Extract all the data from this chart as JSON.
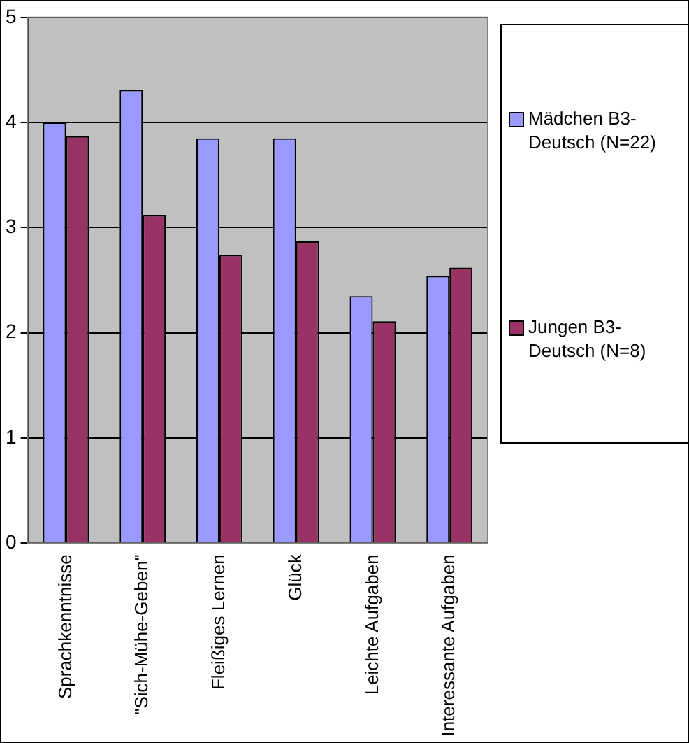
{
  "chart_data": {
    "type": "bar",
    "categories": [
      "Sprachkenntnisse",
      "\"Sich-Mühe-Geben\"",
      "Fleißiges Lernen",
      "Glück",
      "Leichte Aufgaben",
      "Interessante Aufgaben"
    ],
    "series": [
      {
        "name": "Mädchen B3-Deutsch (N=22)",
        "color": "#9999ff",
        "values": [
          4.0,
          4.31,
          3.85,
          3.85,
          2.35,
          2.54
        ]
      },
      {
        "name": "Jungen B3-Deutsch (N=8)",
        "color": "#993366",
        "values": [
          3.87,
          3.12,
          2.74,
          2.87,
          2.11,
          2.62
        ]
      }
    ],
    "ylim": [
      0,
      5
    ],
    "yticks": [
      0,
      1,
      2,
      3,
      4,
      5
    ],
    "grid": "y",
    "legend": "right"
  }
}
